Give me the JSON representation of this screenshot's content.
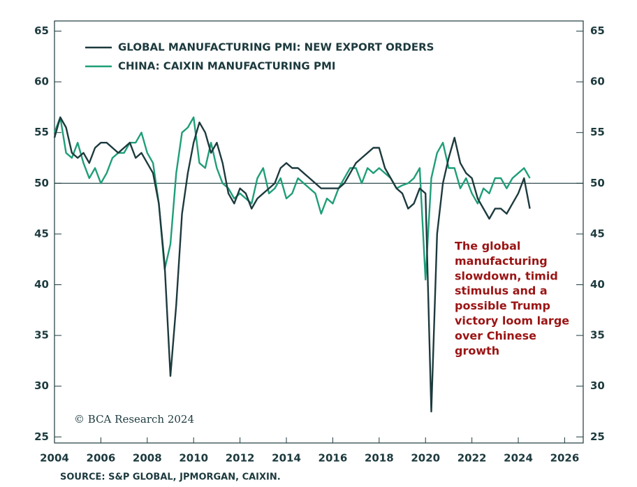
{
  "chart_data": {
    "type": "line",
    "legend": "top-left",
    "xlim": [
      2004,
      2026.8
    ],
    "xticks": [
      2004,
      2006,
      2008,
      2010,
      2012,
      2014,
      2016,
      2018,
      2020,
      2022,
      2024,
      2026
    ],
    "ylim": [
      24.4,
      66
    ],
    "yticks": [
      25,
      30,
      35,
      40,
      45,
      50,
      55,
      60,
      65
    ],
    "y2lim": [
      24.4,
      66
    ],
    "y2ticks": [
      25,
      30,
      35,
      40,
      45,
      50,
      55,
      60,
      65
    ],
    "hline": 50,
    "series": [
      {
        "name": "GLOBAL MANUFACTURING PMI: NEW EXPORT ORDERS",
        "color": "#1d3a3e",
        "x": [
          2004,
          2004.25,
          2004.5,
          2004.75,
          2005,
          2005.25,
          2005.5,
          2005.75,
          2006,
          2006.25,
          2006.5,
          2006.75,
          2007,
          2007.25,
          2007.5,
          2007.75,
          2008,
          2008.25,
          2008.5,
          2008.75,
          2009,
          2009.25,
          2009.5,
          2009.75,
          2010,
          2010.25,
          2010.5,
          2010.75,
          2011,
          2011.25,
          2011.5,
          2011.75,
          2012,
          2012.25,
          2012.5,
          2012.75,
          2013,
          2013.25,
          2013.5,
          2013.75,
          2014,
          2014.25,
          2014.5,
          2014.75,
          2015,
          2015.25,
          2015.5,
          2015.75,
          2016,
          2016.25,
          2016.5,
          2016.75,
          2017,
          2017.25,
          2017.5,
          2017.75,
          2018,
          2018.25,
          2018.5,
          2018.75,
          2019,
          2019.25,
          2019.5,
          2019.75,
          2020,
          2020.25,
          2020.5,
          2020.75,
          2021,
          2021.25,
          2021.5,
          2021.75,
          2022,
          2022.25,
          2022.5,
          2022.75,
          2023,
          2023.25,
          2023.5,
          2023.75,
          2024,
          2024.25,
          2024.5
        ],
        "values": [
          54.5,
          56.5,
          55.5,
          53,
          52.5,
          53,
          52,
          53.5,
          54,
          54,
          53.5,
          53,
          53.5,
          54,
          52.5,
          53,
          52,
          51,
          48,
          42,
          31,
          38,
          47,
          51,
          54,
          56,
          55,
          53,
          54,
          52,
          49,
          48,
          49.5,
          49,
          47.5,
          48.5,
          49,
          49.5,
          50,
          51.5,
          52,
          51.5,
          51.5,
          51,
          50.5,
          50,
          49.5,
          49.5,
          49.5,
          49.5,
          50,
          51,
          52,
          52.5,
          53,
          53.5,
          53.5,
          51.5,
          50.5,
          49.5,
          49,
          47.5,
          48,
          49.5,
          49,
          27.5,
          45,
          50,
          52.5,
          54.5,
          52,
          51,
          50.5,
          48.5,
          47.5,
          46.5,
          47.5,
          47.5,
          47,
          48,
          49,
          50.5,
          47.5
        ]
      },
      {
        "name": "CHINA: CAIXIN MANUFACTURING PMI",
        "color": "#1f9e78",
        "x": [
          2004,
          2004.25,
          2004.5,
          2004.75,
          2005,
          2005.25,
          2005.5,
          2005.75,
          2006,
          2006.25,
          2006.5,
          2006.75,
          2007,
          2007.25,
          2007.5,
          2007.75,
          2008,
          2008.25,
          2008.5,
          2008.75,
          2009,
          2009.25,
          2009.5,
          2009.75,
          2010,
          2010.25,
          2010.5,
          2010.75,
          2011,
          2011.25,
          2011.5,
          2011.75,
          2012,
          2012.25,
          2012.5,
          2012.75,
          2013,
          2013.25,
          2013.5,
          2013.75,
          2014,
          2014.25,
          2014.5,
          2014.75,
          2015,
          2015.25,
          2015.5,
          2015.75,
          2016,
          2016.25,
          2016.5,
          2016.75,
          2017,
          2017.25,
          2017.5,
          2017.75,
          2018,
          2018.25,
          2018.5,
          2018.75,
          2019,
          2019.25,
          2019.5,
          2019.75,
          2020,
          2020.25,
          2020.5,
          2020.75,
          2021,
          2021.25,
          2021.5,
          2021.75,
          2022,
          2022.25,
          2022.5,
          2022.75,
          2023,
          2023.25,
          2023.5,
          2023.75,
          2024,
          2024.25,
          2024.5
        ],
        "values": [
          55,
          56.5,
          53,
          52.5,
          54,
          52,
          50.5,
          51.5,
          50,
          51,
          52.5,
          53,
          53,
          54,
          54,
          55,
          53,
          52,
          48,
          41.5,
          44,
          51,
          55,
          55.5,
          56.5,
          52,
          51.5,
          54,
          51.5,
          50,
          49.5,
          48.5,
          49,
          48.5,
          48,
          50.5,
          51.5,
          49,
          49.5,
          50.5,
          48.5,
          49,
          50.5,
          50,
          49.5,
          49,
          47,
          48.5,
          48,
          49.5,
          50.5,
          51.5,
          51.5,
          50,
          51.5,
          51,
          51.5,
          51,
          50.5,
          49.5,
          49.8,
          50,
          50.5,
          51.5,
          40.5,
          50.5,
          53,
          54,
          51.5,
          51.5,
          49.5,
          50.5,
          49,
          48,
          49.5,
          49,
          50.5,
          50.5,
          49.5,
          50.5,
          51,
          51.5,
          50.5
        ]
      }
    ],
    "annotation": [
      "The global",
      "manufacturing",
      "slowdown, timid",
      "stimulus and a",
      "possible Trump",
      "victory loom large",
      "over Chinese",
      "growth"
    ],
    "credit": "© BCA Research 2024",
    "source": "SOURCE: S&P GLOBAL, JPMORGAN, CAIXIN."
  }
}
